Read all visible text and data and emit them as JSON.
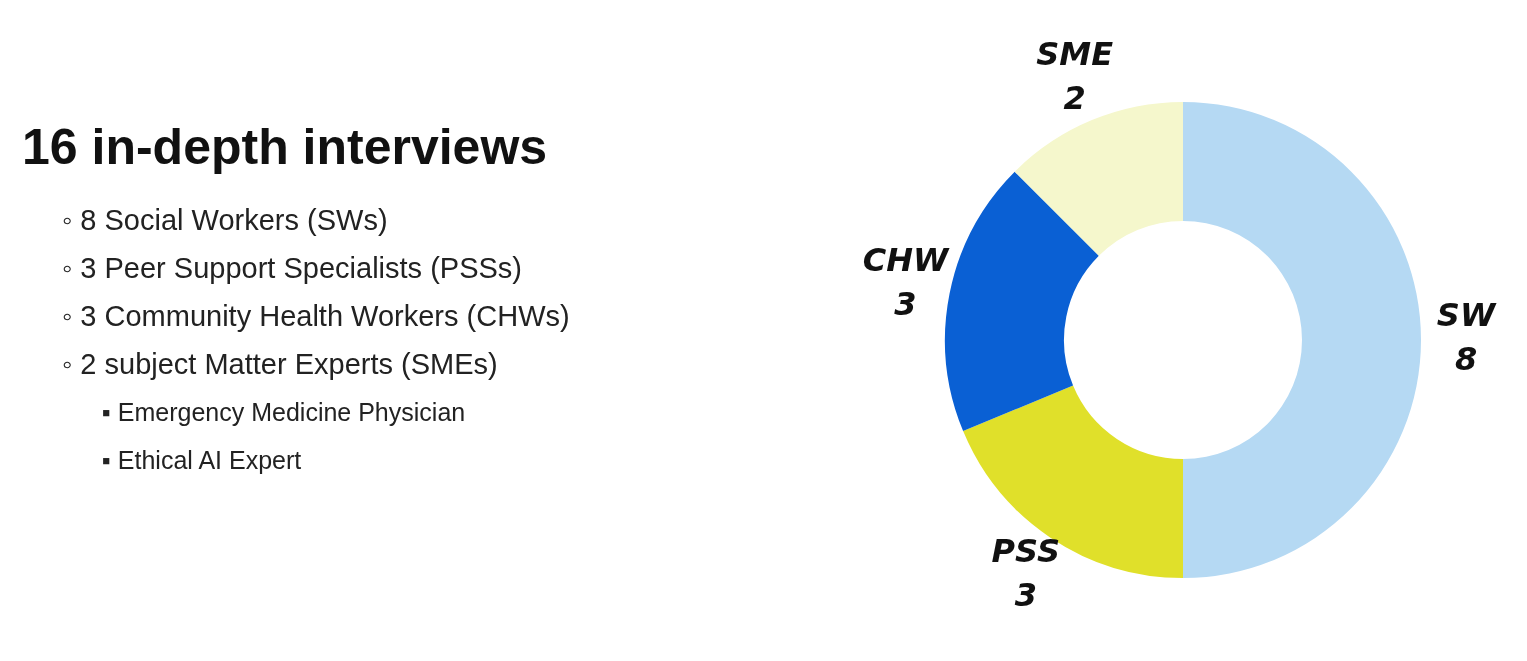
{
  "chart_data": {
    "type": "donut",
    "title": "16 in-depth interviews",
    "annotations": [
      "◦ 8 Social Workers (SWs)",
      "◦ 3 Peer Support Specialists (PSSs)",
      "◦ 3 Community Health Workers (CHWs)",
      "◦ 2 subject Matter Experts (SMEs)",
      "▪ Emergency Medicine Physician",
      "▪ Ethical AI Expert"
    ],
    "categories": [
      "SW",
      "PSS",
      "CHW",
      "SME"
    ],
    "values": [
      8,
      3,
      3,
      2
    ],
    "colors": [
      "#b5d9f3",
      "#e0e02a",
      "#0a60d4",
      "#f5f7cc"
    ],
    "data_labels": true,
    "legend": false
  }
}
